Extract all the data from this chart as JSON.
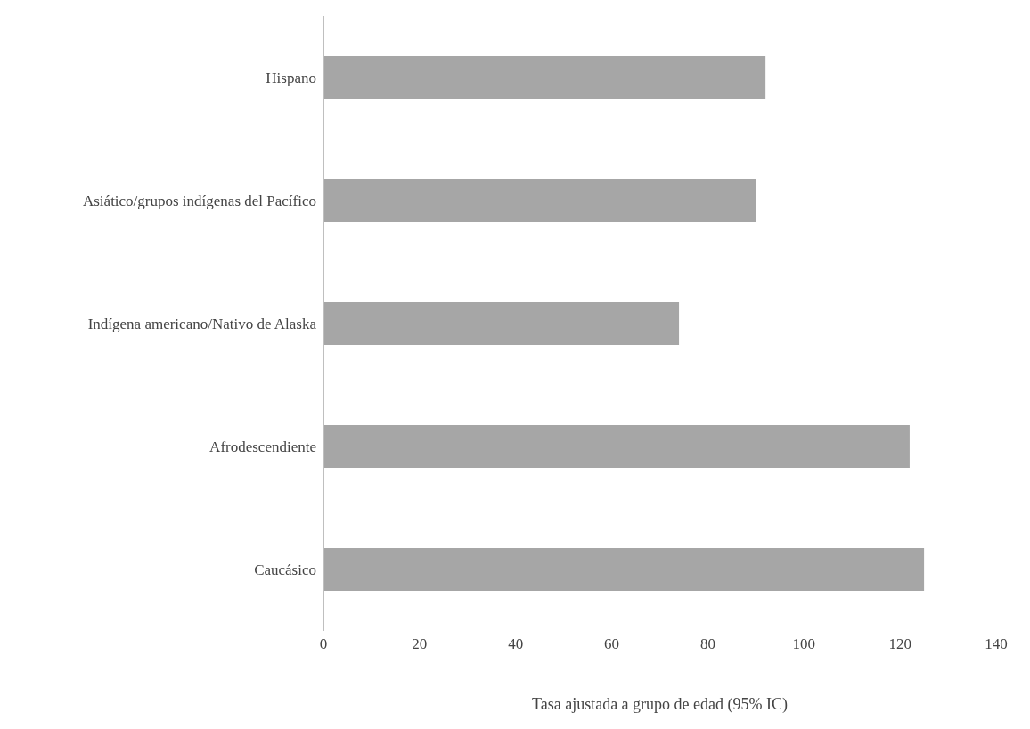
{
  "chart_data": {
    "type": "bar",
    "orientation": "horizontal",
    "xlabel": "Tasa ajustada a grupo de edad (95% IC)",
    "categories": [
      "Hispano",
      "Asiático/grupos indígenas del Pacífico",
      "Indígena americano/Nativo de Alaska",
      "Afrodescendiente",
      "Caucásico"
    ],
    "values": [
      92,
      90,
      74,
      122,
      125
    ],
    "color": "#a6a6a6",
    "xlim": [
      0,
      140
    ],
    "xticks": [
      0,
      20,
      40,
      60,
      80,
      100,
      120,
      140
    ],
    "grid": false,
    "legend": false
  }
}
